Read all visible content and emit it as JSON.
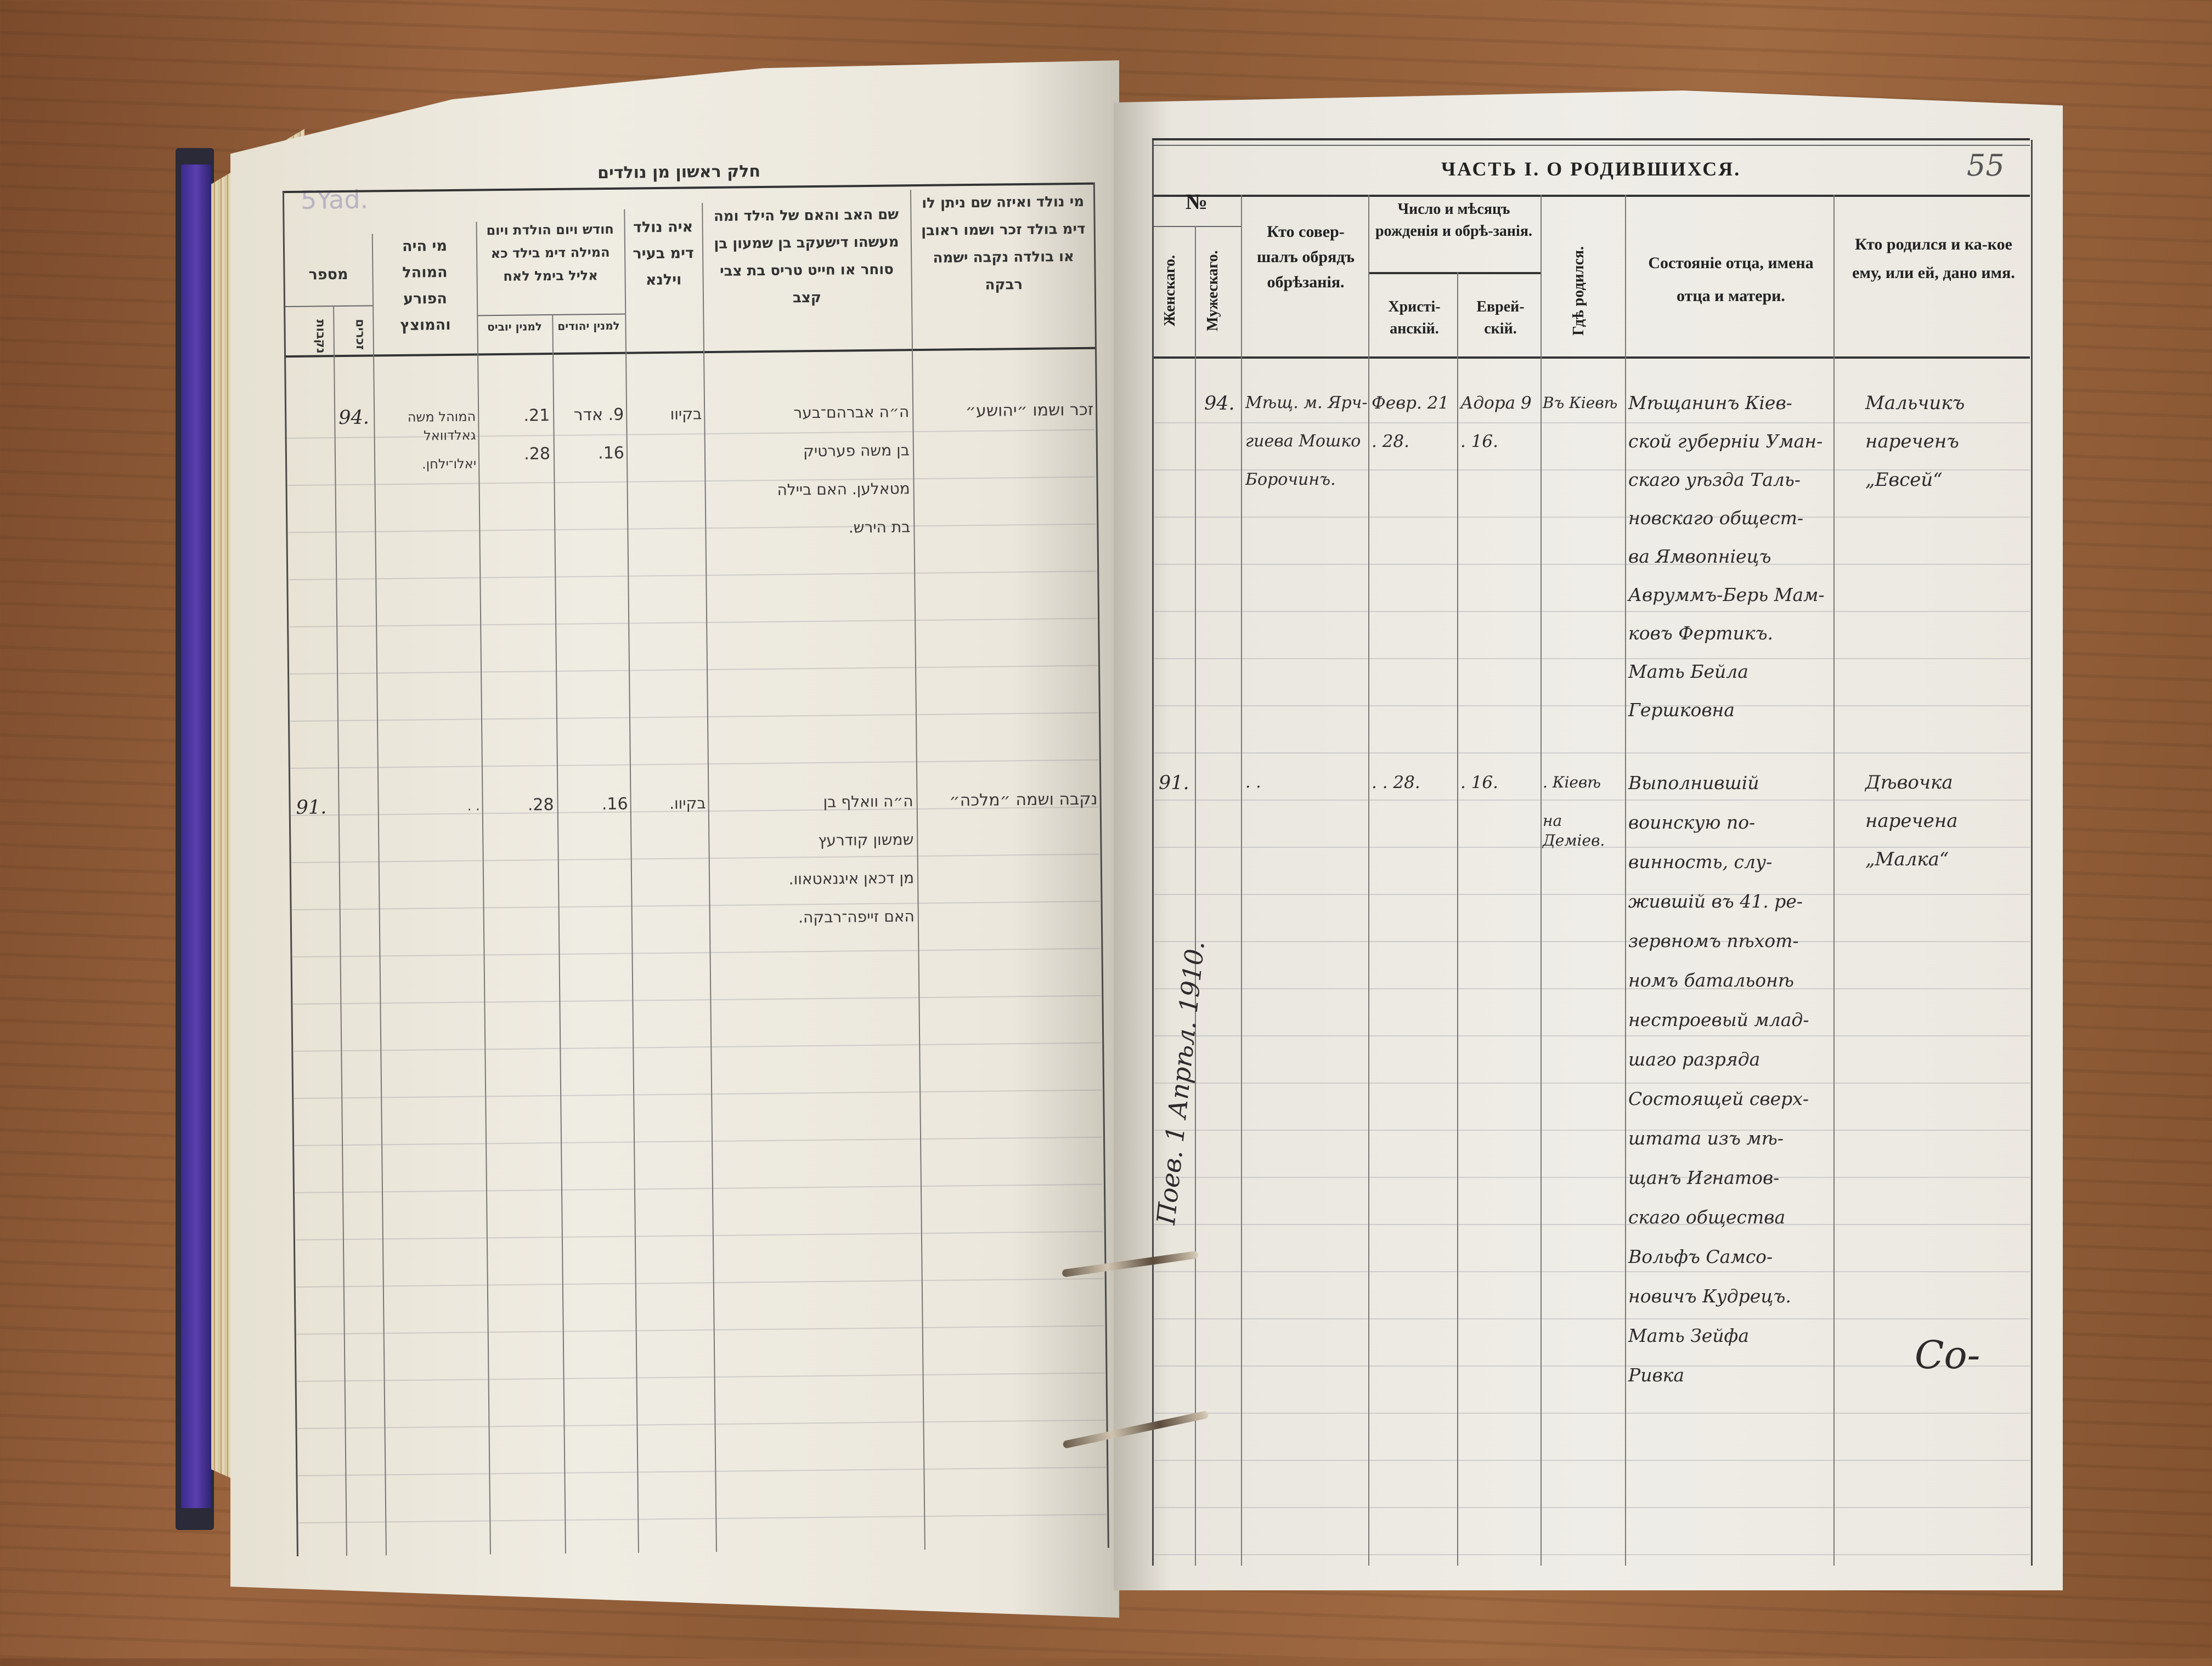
{
  "left_page": {
    "title": "חלק ראשון מן נולדים",
    "pencil_note": "5Yad.",
    "headers": {
      "number": "מספר",
      "number_male": "זכרים",
      "number_female": "נקבות",
      "mohel": "מי היה המוהל הפורע והמוצץ",
      "dates": "חודש ויום הולדת ויום המילה דימ בילד כא אליל בימל לאח",
      "dates_christian": "למנין יוביס",
      "dates_jewish": "למנין יהודים",
      "place": "איה נולד דימ בעיר וילנא",
      "parents": "שם האב והאם של הילד ומה מעשהו דישעקב בן שמעון בן סוחר או חייט טריס בת צבי קצב",
      "child": "מי נולד ואיזה שם ניתן לו דימ בולד זכר ושמו ראובן או בולדה נקבה ישמה רבקה"
    },
    "entries": [
      {
        "number": "94.",
        "mohel_lines": [
          "המוהל משה גאלדוואל",
          "יאלו־ילחן."
        ],
        "christian_date_lines": [
          "21.",
          "28."
        ],
        "jewish_date_lines": [
          "9. אדר",
          "16."
        ],
        "place": "בקיוו",
        "parents_lines": [
          "ה״ה אברהם־בער",
          "בן משה פערטיק",
          "מטאלען. האם ביילה",
          "בת הירש."
        ],
        "child": "זכר ושמו ״יהושע״"
      },
      {
        "number": "91.",
        "mohel_lines": [
          ". ."
        ],
        "christian_date_lines": [
          "28."
        ],
        "jewish_date_lines": [
          "16."
        ],
        "place": "בקיוו.",
        "parents_lines": [
          "ה״ה וואלף בן",
          "שמשון קודרעץ",
          "מן דכאן איגנאטאוו.",
          "האם זייפה־רבקה."
        ],
        "child": "נקבה ושמה ״מלכה״"
      }
    ]
  },
  "right_page": {
    "title": "ЧАСТЬ I. О РОДИВШИХСЯ.",
    "page_number": "55",
    "headers": {
      "number": "№",
      "female": "Женскаго.",
      "male": "Мужескаго.",
      "officiant": "Кто совер-шалъ обрядъ обрѣзанія.",
      "dates": "Число и мѣсяцъ рожденія и обрѣ-занія.",
      "dates_christian": "Христі-анскій.",
      "dates_jewish": "Еврей-скій.",
      "place": "Гдѣ родился.",
      "parents": "Состояніе отца, имена отца и матери.",
      "child": "Кто родился и ка-кое ему, или ей, дано имя."
    },
    "entries": [
      {
        "male_number": "94.",
        "female_number": "",
        "officiant_lines": [
          "Мѣщ. м. Ярч-",
          "гиева Мошко",
          "Борочинъ."
        ],
        "christian_date_lines": [
          "Февр. 21",
          ". 28."
        ],
        "jewish_date_lines": [
          "Адора 9",
          ". 16."
        ],
        "place_lines": [
          "Въ Кіевѣ"
        ],
        "parents_lines": [
          "Мѣщанинъ Кіев-",
          "ской губерніи Уман-",
          "скаго уѣзда Таль-",
          "новскаго общест-",
          "ва Ямвопнiецъ",
          "Авруммъ-Берь Мам-",
          "ковъ Фертикъ.",
          "Мать Бейла",
          "Гершковна"
        ],
        "child_lines": [
          "Мальчикъ",
          "нареченъ",
          "„Евсей“"
        ]
      },
      {
        "male_number": "",
        "female_number": "91.",
        "officiant_lines": [
          ". ."
        ],
        "christian_date_lines": [
          ". . 28."
        ],
        "jewish_date_lines": [
          ". 16."
        ],
        "place_lines": [
          ". Кіевѣ",
          "на Деміев."
        ],
        "parents_lines": [
          "Выполнившій",
          "воинскую по-",
          "винность, слу-",
          "жившій въ 41. ре-",
          "зервномъ пѣхот-",
          "номъ батальонѣ",
          "нестроевый млад-",
          "шаго разряда",
          "Состоящей сверх-",
          "штата изъ мѣ-",
          "щанъ Игнатов-",
          "скаго общества",
          "Вольфъ Самсо-",
          "новичъ Кудрецъ.",
          "Мать Зейфа",
          "Ривка"
        ],
        "child_lines": [
          "Дѣвочка",
          "наречена",
          "„Малка“"
        ]
      }
    ],
    "margin_note": "Поев. 1 Апрѣл. 1910.",
    "signature": "Со-"
  },
  "colors": {
    "wood": "#8c5a36",
    "paper": "#eeebe2",
    "ink": "#2d2a2c",
    "print": "#222222",
    "cover_purple": "#4a35a0"
  }
}
